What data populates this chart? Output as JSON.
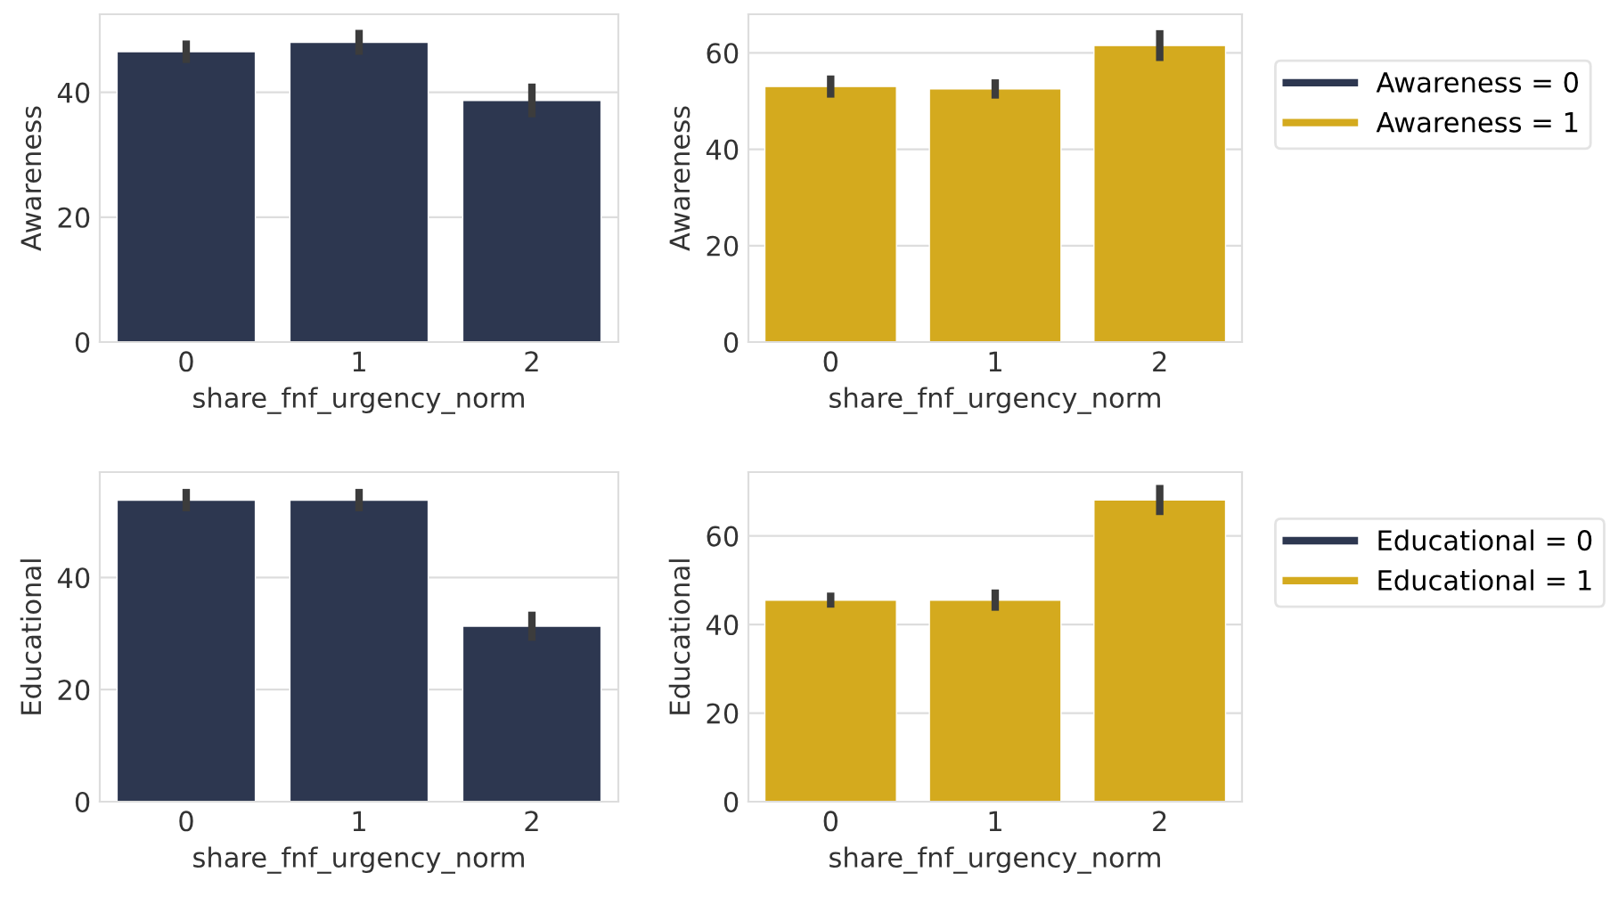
{
  "chart_data": [
    {
      "type": "bar",
      "xlabel": "share_fnf_urgency_norm",
      "ylabel": "Awareness",
      "categories": [
        "0",
        "1",
        "2"
      ],
      "ylim": [
        0,
        52.5
      ],
      "yticks": [
        0,
        20,
        40
      ],
      "grid": "y",
      "legend": false,
      "series": [
        {
          "name": "Awareness = 0",
          "color": "#2d3750",
          "values": [
            46.5,
            48,
            38.7
          ],
          "errors": [
            1.8,
            2,
            2.7
          ]
        }
      ]
    },
    {
      "type": "bar",
      "xlabel": "share_fnf_urgency_norm",
      "ylabel": "Awareness",
      "categories": [
        "0",
        "1",
        "2"
      ],
      "ylim": [
        0,
        68
      ],
      "yticks": [
        0,
        20,
        40,
        60
      ],
      "grid": "y",
      "legend": "right",
      "series": [
        {
          "name": "Awareness = 1",
          "color": "#d4aa1e",
          "values": [
            53,
            52.5,
            61.5
          ],
          "errors": [
            2.3,
            2,
            3.2
          ]
        }
      ]
    },
    {
      "type": "bar",
      "xlabel": "share_fnf_urgency_norm",
      "ylabel": "Educational",
      "categories": [
        "0",
        "1",
        "2"
      ],
      "ylim": [
        0,
        58.8
      ],
      "yticks": [
        0,
        20,
        40
      ],
      "grid": "y",
      "legend": false,
      "series": [
        {
          "name": "Educational = 0",
          "color": "#2d3750",
          "values": [
            53.8,
            53.8,
            31.3
          ],
          "errors": [
            2,
            2,
            2.6
          ]
        }
      ]
    },
    {
      "type": "bar",
      "xlabel": "share_fnf_urgency_norm",
      "ylabel": "Educational",
      "categories": [
        "0",
        "1",
        "2"
      ],
      "ylim": [
        0,
        74.4
      ],
      "yticks": [
        0,
        20,
        40,
        60
      ],
      "grid": "y",
      "legend": "right",
      "series": [
        {
          "name": "Educational = 1",
          "color": "#d4aa1e",
          "values": [
            45.5,
            45.5,
            68.1
          ],
          "errors": [
            1.7,
            2.4,
            3.4
          ]
        }
      ]
    }
  ]
}
